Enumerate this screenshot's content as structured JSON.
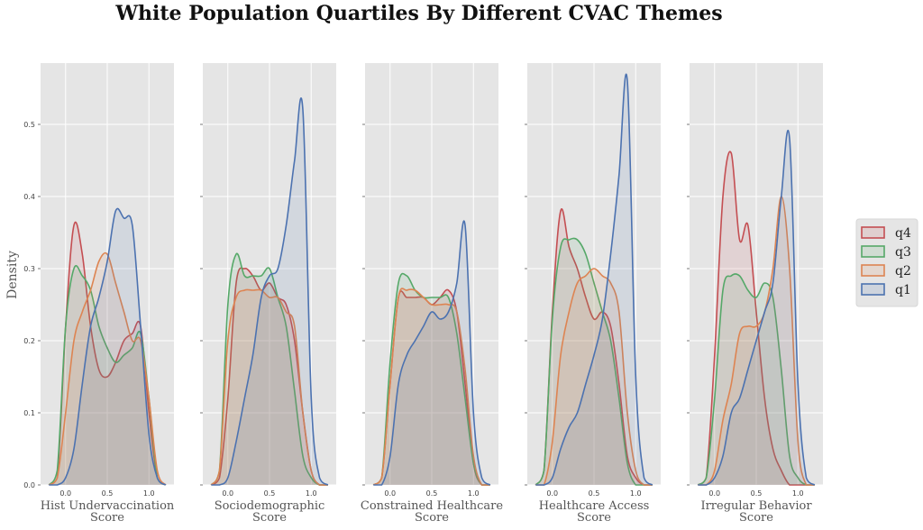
{
  "title": "White Population Quartiles By Different CVAC Themes",
  "ylabel": "Density",
  "legend": [
    {
      "label": "q4",
      "color": "#c44e52"
    },
    {
      "label": "q3",
      "color": "#55a868"
    },
    {
      "label": "q2",
      "color": "#dd8452"
    },
    {
      "label": "q1",
      "color": "#4c72b0"
    }
  ],
  "chart_data": {
    "type": "area",
    "title": "White Population Quartiles By Different CVAC Themes",
    "ylabel": "Density",
    "legend_position": "right",
    "grid": true,
    "xlim": [
      -0.3,
      1.3
    ],
    "ylim": [
      0,
      0.585
    ],
    "x_ticks": [
      0.0,
      0.5,
      1.0
    ],
    "x_tick_labels": [
      "0.0",
      "0.5",
      "1.0"
    ],
    "y_ticks": [
      0.0,
      0.1,
      0.2,
      0.3,
      0.4,
      0.5
    ],
    "y_tick_labels": [
      "0.0",
      "0.1",
      "0.2",
      "0.3",
      "0.4",
      "0.5"
    ],
    "x": [
      -0.2,
      -0.1,
      0.0,
      0.1,
      0.2,
      0.3,
      0.4,
      0.5,
      0.6,
      0.7,
      0.8,
      0.9,
      1.0,
      1.1,
      1.2
    ],
    "panels": [
      {
        "xlabel_lines": [
          "Hist Undervaccination",
          "Score"
        ],
        "series": [
          {
            "name": "q4",
            "values": [
              0,
              0.01,
              0.22,
              0.36,
              0.32,
              0.22,
              0.16,
              0.15,
              0.17,
              0.2,
              0.21,
              0.22,
              0.1,
              0.01,
              0
            ]
          },
          {
            "name": "q3",
            "values": [
              0,
              0.02,
              0.22,
              0.3,
              0.29,
              0.27,
              0.22,
              0.19,
              0.17,
              0.18,
              0.19,
              0.21,
              0.12,
              0.01,
              0
            ]
          },
          {
            "name": "q2",
            "values": [
              0,
              0.01,
              0.1,
              0.2,
              0.24,
              0.27,
              0.31,
              0.32,
              0.28,
              0.24,
              0.2,
              0.2,
              0.12,
              0.02,
              0
            ]
          },
          {
            "name": "q1",
            "values": [
              0,
              0,
              0.01,
              0.05,
              0.14,
              0.22,
              0.26,
              0.31,
              0.38,
              0.37,
              0.36,
              0.22,
              0.07,
              0.01,
              0
            ]
          }
        ]
      },
      {
        "xlabel_lines": [
          "Sociodemographic",
          "Score"
        ],
        "series": [
          {
            "name": "q4",
            "values": [
              0,
              0.01,
              0.12,
              0.28,
              0.3,
              0.29,
              0.27,
              0.28,
              0.26,
              0.25,
              0.2,
              0.1,
              0.02,
              0,
              0
            ]
          },
          {
            "name": "q3",
            "values": [
              0,
              0.02,
              0.25,
              0.32,
              0.29,
              0.29,
              0.29,
              0.3,
              0.26,
              0.22,
              0.13,
              0.04,
              0.01,
              0,
              0
            ]
          },
          {
            "name": "q2",
            "values": [
              0,
              0.02,
              0.2,
              0.26,
              0.27,
              0.27,
              0.27,
              0.26,
              0.26,
              0.24,
              0.22,
              0.1,
              0.02,
              0,
              0
            ]
          },
          {
            "name": "q1",
            "values": [
              0,
              0,
              0.01,
              0.06,
              0.12,
              0.18,
              0.26,
              0.29,
              0.3,
              0.36,
              0.45,
              0.52,
              0.12,
              0.01,
              0
            ]
          }
        ]
      },
      {
        "xlabel_lines": [
          "Constrained Healthcare",
          "Score"
        ],
        "series": [
          {
            "name": "q4",
            "values": [
              0,
              0.01,
              0.14,
              0.26,
              0.26,
              0.26,
              0.26,
              0.25,
              0.26,
              0.27,
              0.24,
              0.14,
              0.03,
              0,
              0
            ]
          },
          {
            "name": "q3",
            "values": [
              0,
              0.01,
              0.17,
              0.28,
              0.29,
              0.27,
              0.26,
              0.26,
              0.26,
              0.26,
              0.21,
              0.12,
              0.03,
              0,
              0
            ]
          },
          {
            "name": "q2",
            "values": [
              0,
              0.01,
              0.14,
              0.26,
              0.27,
              0.27,
              0.26,
              0.25,
              0.25,
              0.25,
              0.24,
              0.16,
              0.04,
              0,
              0
            ]
          },
          {
            "name": "q1",
            "values": [
              0,
              0,
              0.04,
              0.14,
              0.18,
              0.2,
              0.22,
              0.24,
              0.23,
              0.24,
              0.28,
              0.36,
              0.1,
              0.01,
              0
            ]
          }
        ]
      },
      {
        "xlabel_lines": [
          "Healthcare Access",
          "Score"
        ],
        "series": [
          {
            "name": "q4",
            "values": [
              0,
              0.02,
              0.24,
              0.38,
              0.33,
              0.3,
              0.26,
              0.23,
              0.24,
              0.22,
              0.14,
              0.04,
              0.01,
              0,
              0
            ]
          },
          {
            "name": "q3",
            "values": [
              0,
              0.02,
              0.23,
              0.33,
              0.34,
              0.34,
              0.32,
              0.28,
              0.24,
              0.2,
              0.12,
              0.03,
              0,
              0,
              0
            ]
          },
          {
            "name": "q2",
            "values": [
              0,
              0,
              0.06,
              0.18,
              0.24,
              0.28,
              0.29,
              0.3,
              0.29,
              0.28,
              0.24,
              0.1,
              0.02,
              0,
              0
            ]
          },
          {
            "name": "q1",
            "values": [
              0,
              0,
              0.01,
              0.05,
              0.08,
              0.1,
              0.14,
              0.18,
              0.23,
              0.32,
              0.43,
              0.56,
              0.15,
              0.01,
              0
            ]
          }
        ]
      },
      {
        "xlabel_lines": [
          "Irregular Behavior",
          "Score"
        ],
        "series": [
          {
            "name": "q4",
            "values": [
              0,
              0.01,
              0.18,
              0.4,
              0.46,
              0.34,
              0.36,
              0.24,
              0.12,
              0.05,
              0.02,
              0,
              0,
              0,
              0
            ]
          },
          {
            "name": "q3",
            "values": [
              0,
              0.01,
              0.12,
              0.27,
              0.29,
              0.29,
              0.27,
              0.26,
              0.28,
              0.26,
              0.16,
              0.04,
              0.01,
              0,
              0
            ]
          },
          {
            "name": "q2",
            "values": [
              0,
              0,
              0.02,
              0.09,
              0.14,
              0.21,
              0.22,
              0.22,
              0.24,
              0.3,
              0.4,
              0.3,
              0.06,
              0,
              0
            ]
          },
          {
            "name": "q1",
            "values": [
              0,
              0,
              0.01,
              0.04,
              0.1,
              0.12,
              0.16,
              0.2,
              0.24,
              0.28,
              0.4,
              0.48,
              0.14,
              0.01,
              0
            ]
          }
        ]
      }
    ]
  }
}
